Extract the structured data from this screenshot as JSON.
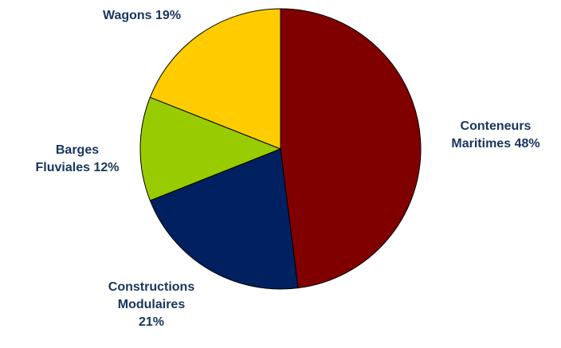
{
  "chart_data": {
    "type": "pie",
    "categories": [
      "Conteneurs Maritimes",
      "Constructions Modulaires",
      "Barges Fluviales",
      "Wagons"
    ],
    "values": [
      48,
      21,
      12,
      19
    ],
    "value_labels": [
      "48%",
      "21%",
      "12%",
      "19%"
    ],
    "colors": [
      "#800000",
      "#002060",
      "#99cc00",
      "#ffcc00"
    ]
  }
}
